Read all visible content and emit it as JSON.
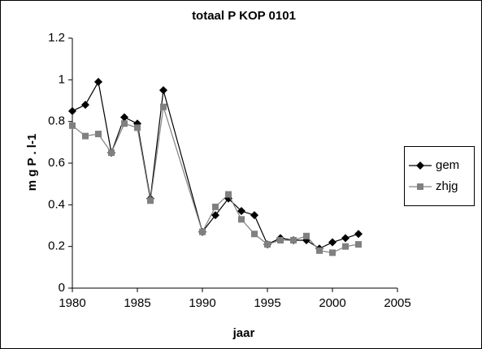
{
  "chart_data": {
    "type": "line",
    "title": "totaal P KOP 0101",
    "x_label": "jaar",
    "y_label": "m g P . l-1",
    "x": [
      1980,
      1981,
      1982,
      1983,
      1984,
      1985,
      1986,
      1987,
      1990,
      1991,
      1992,
      1993,
      1994,
      1995,
      1996,
      1997,
      1998,
      1999,
      2000,
      2001,
      2002
    ],
    "series": [
      {
        "name": "gem",
        "color": "#000000",
        "marker": "diamond",
        "values": [
          0.85,
          0.88,
          0.99,
          0.65,
          0.82,
          0.79,
          0.43,
          0.95,
          0.27,
          0.35,
          0.43,
          0.37,
          0.35,
          0.21,
          0.24,
          0.23,
          0.23,
          0.19,
          0.22,
          0.24,
          0.26
        ]
      },
      {
        "name": "zhjg",
        "color": "#808080",
        "marker": "square",
        "values": [
          0.78,
          0.73,
          0.74,
          0.65,
          0.79,
          0.77,
          0.42,
          0.87,
          0.27,
          0.39,
          0.45,
          0.33,
          0.26,
          0.21,
          0.23,
          0.23,
          0.25,
          0.18,
          0.17,
          0.2,
          0.21
        ]
      }
    ],
    "xlim": [
      1980,
      2005
    ],
    "xticks": [
      1980,
      1985,
      1990,
      1995,
      2000,
      2005
    ],
    "ylim": [
      0,
      1.2
    ],
    "yticks": [
      0,
      0.2,
      0.4,
      0.6,
      0.8,
      1,
      1.2
    ],
    "grid": false,
    "legend": "right"
  }
}
